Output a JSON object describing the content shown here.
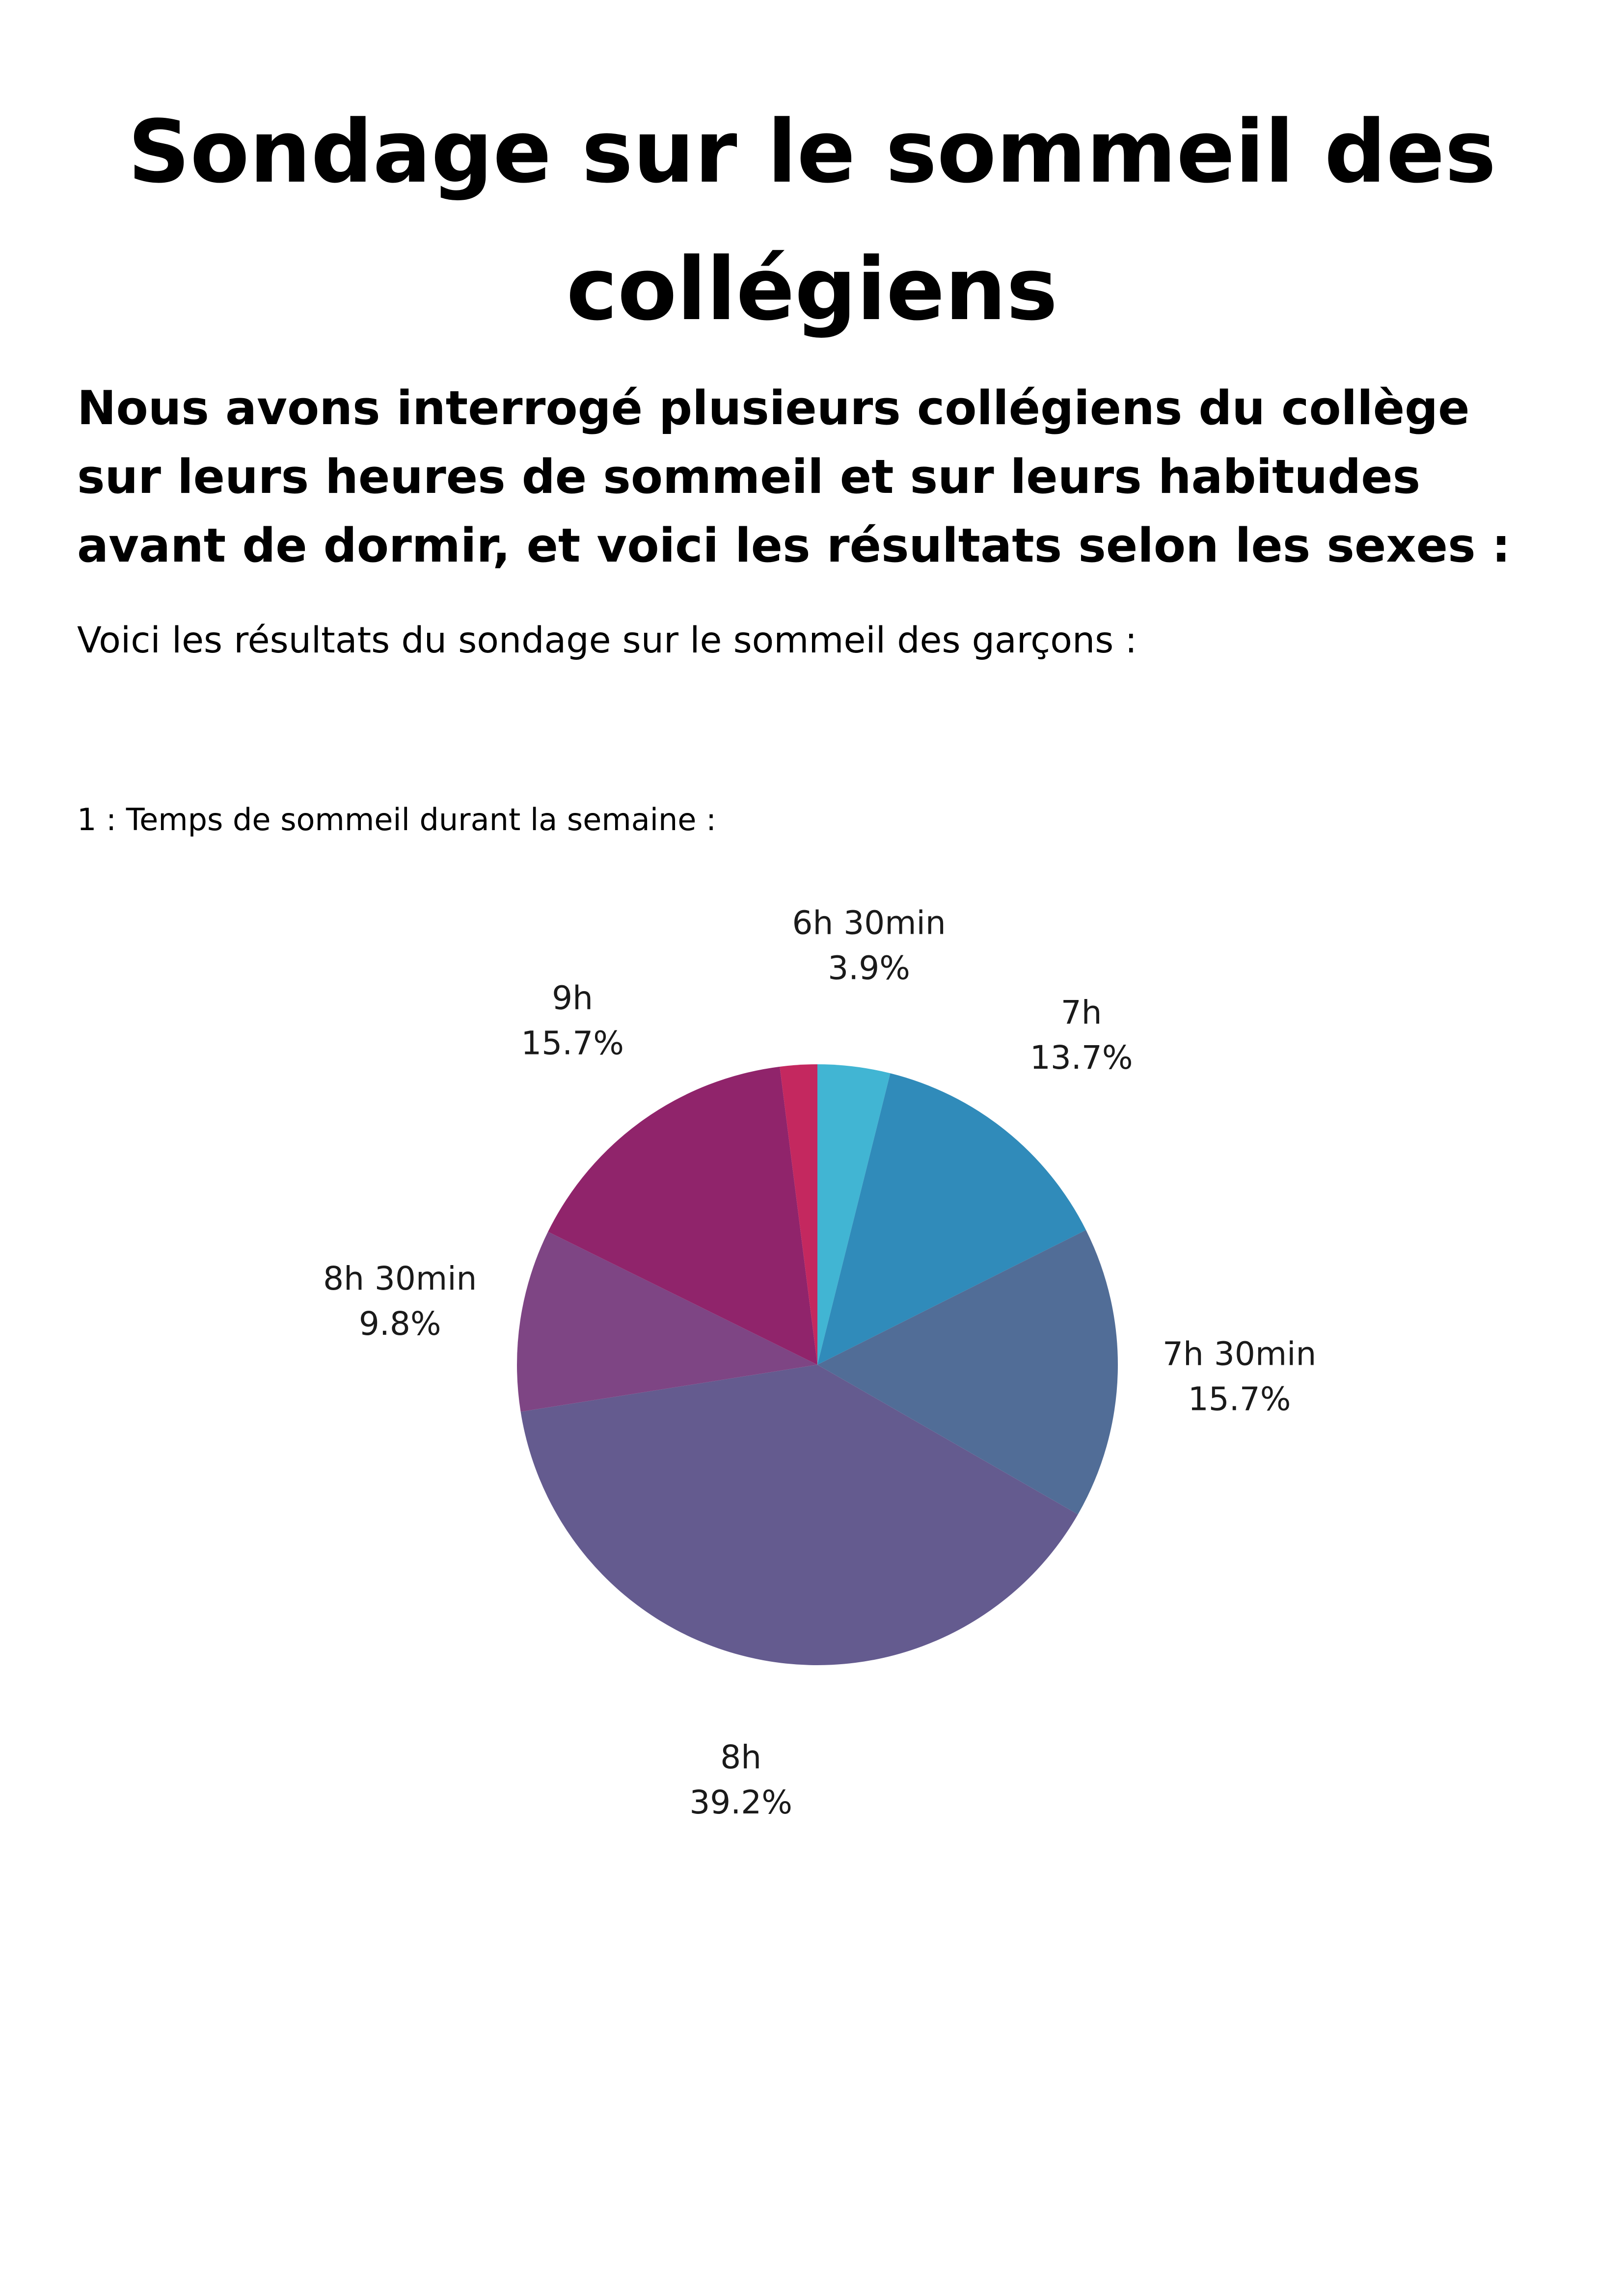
{
  "document": {
    "title": "Sondage sur le sommeil des collégiens",
    "intro": "Nous avons interrogé plusieurs collégiens du collège sur leurs heures de sommeil et sur leurs habitudes avant de dormir, et voici les résultats selon les sexes :",
    "lead": "Voici les résultats du sondage sur le sommeil des garçons :",
    "question": "1 : Temps de sommeil durant la semaine :"
  },
  "chart_data": {
    "type": "pie",
    "title": "",
    "legend": "none",
    "slices": [
      {
        "label": "6h 30min",
        "value": 3.9,
        "percent_label": "3.9%",
        "color": "#41b5d3"
      },
      {
        "label": "7h",
        "value": 13.7,
        "percent_label": "13.7%",
        "color": "#308bba"
      },
      {
        "label": "7h 30min",
        "value": 15.7,
        "percent_label": "15.7%",
        "color": "#516d97"
      },
      {
        "label": "8h",
        "value": 39.2,
        "percent_label": "39.2%",
        "color": "#645b8f"
      },
      {
        "label": "8h 30min",
        "value": 9.8,
        "percent_label": "9.8%",
        "color": "#7e4584"
      },
      {
        "label": "9h",
        "value": 15.7,
        "percent_label": "15.7%",
        "color": "#90246b"
      },
      {
        "label": "",
        "value": 2.0,
        "percent_label": "",
        "color": "#c4285f"
      }
    ]
  }
}
